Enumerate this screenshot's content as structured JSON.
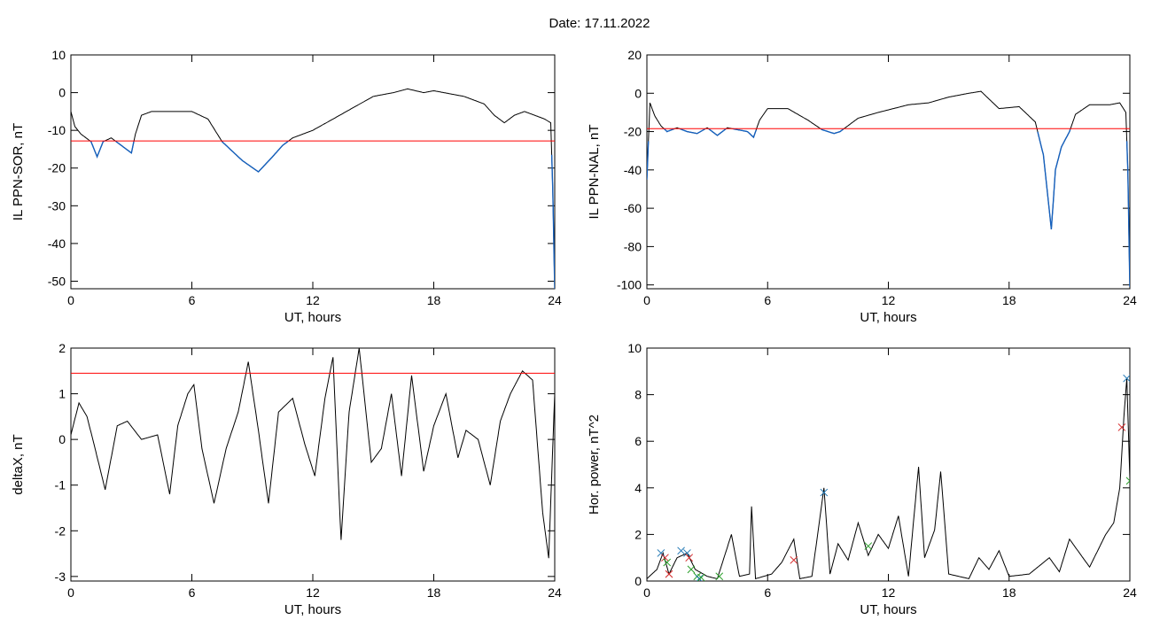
{
  "page": {
    "title": "Date:  17.11.2022"
  },
  "colors": {
    "trace": "#000000",
    "below_threshold": "#1560bd",
    "threshold": "#ff0000",
    "marker_blue": "#1f77b4",
    "marker_red": "#d62728",
    "marker_green": "#2ca02c"
  },
  "chart_data": [
    {
      "id": "sor",
      "type": "line",
      "xlabel": "UT, hours",
      "ylabel": "IL PPN-SOR, nT",
      "xlim": [
        0,
        24
      ],
      "ylim": [
        -52,
        10
      ],
      "xticks": [
        0,
        6,
        12,
        18,
        24
      ],
      "yticks": [
        10,
        0,
        -10,
        -20,
        -30,
        -40,
        -50
      ],
      "threshold": -12.8,
      "series": [
        {
          "values": [
            [
              0,
              -5
            ],
            [
              0.2,
              -9
            ],
            [
              0.5,
              -11
            ],
            [
              1,
              -13
            ],
            [
              1.3,
              -17
            ],
            [
              1.6,
              -13
            ],
            [
              2,
              -12
            ],
            [
              2.5,
              -14
            ],
            [
              3,
              -16
            ],
            [
              3.2,
              -11
            ],
            [
              3.5,
              -6
            ],
            [
              4,
              -5
            ],
            [
              5,
              -5
            ],
            [
              6,
              -5
            ],
            [
              6.8,
              -7
            ],
            [
              7.5,
              -13
            ],
            [
              8.5,
              -18
            ],
            [
              9.3,
              -21
            ],
            [
              10,
              -17
            ],
            [
              10.5,
              -14
            ],
            [
              11,
              -12
            ],
            [
              12,
              -10
            ],
            [
              13,
              -7
            ],
            [
              14,
              -4
            ],
            [
              15,
              -1
            ],
            [
              16,
              0
            ],
            [
              16.7,
              1
            ],
            [
              17.5,
              0
            ],
            [
              18,
              0.5
            ],
            [
              19,
              -0.5
            ],
            [
              19.5,
              -1
            ],
            [
              20.5,
              -3
            ],
            [
              21,
              -6
            ],
            [
              21.5,
              -8
            ],
            [
              22,
              -6
            ],
            [
              22.5,
              -5
            ],
            [
              23,
              -6
            ],
            [
              23.5,
              -7
            ],
            [
              23.8,
              -8
            ],
            [
              23.9,
              -25
            ],
            [
              24,
              -52
            ]
          ]
        }
      ]
    },
    {
      "id": "nal",
      "type": "line",
      "xlabel": "UT, hours",
      "ylabel": "IL PPN-NAL, nT",
      "xlim": [
        0,
        24
      ],
      "ylim": [
        -102,
        20
      ],
      "xticks": [
        0,
        6,
        12,
        18,
        24
      ],
      "yticks": [
        20,
        0,
        -20,
        -40,
        -60,
        -80,
        -100
      ],
      "threshold": -18.5,
      "series": [
        {
          "values": [
            [
              0,
              -45
            ],
            [
              0.15,
              -5
            ],
            [
              0.4,
              -12
            ],
            [
              0.7,
              -17
            ],
            [
              1,
              -20
            ],
            [
              1.5,
              -18
            ],
            [
              2,
              -20
            ],
            [
              2.5,
              -21
            ],
            [
              3,
              -18
            ],
            [
              3.5,
              -22
            ],
            [
              4,
              -18
            ],
            [
              5,
              -20
            ],
            [
              5.3,
              -23
            ],
            [
              5.6,
              -14
            ],
            [
              6,
              -8
            ],
            [
              7,
              -8
            ],
            [
              8,
              -14
            ],
            [
              8.7,
              -19
            ],
            [
              9.3,
              -21
            ],
            [
              9.6,
              -20
            ],
            [
              10.5,
              -13
            ],
            [
              11.5,
              -10
            ],
            [
              13,
              -6
            ],
            [
              14,
              -5
            ],
            [
              15,
              -2
            ],
            [
              16,
              0
            ],
            [
              16.6,
              1
            ],
            [
              17,
              -3
            ],
            [
              17.5,
              -8
            ],
            [
              18.5,
              -7
            ],
            [
              19.3,
              -15
            ],
            [
              19.7,
              -32
            ],
            [
              20.1,
              -71
            ],
            [
              20.3,
              -40
            ],
            [
              20.6,
              -28
            ],
            [
              21,
              -20
            ],
            [
              21.3,
              -11
            ],
            [
              22,
              -6
            ],
            [
              23,
              -6
            ],
            [
              23.5,
              -5
            ],
            [
              23.8,
              -10
            ],
            [
              23.9,
              -40
            ],
            [
              24,
              -101
            ]
          ]
        }
      ]
    },
    {
      "id": "deltax",
      "type": "line",
      "xlabel": "UT, hours",
      "ylabel": "deltaX, nT",
      "xlim": [
        0,
        24
      ],
      "ylim": [
        -3.1,
        2
      ],
      "xticks": [
        0,
        6,
        12,
        18,
        24
      ],
      "yticks": [
        2,
        1,
        0,
        -1,
        -2,
        -3
      ],
      "threshold": 1.45,
      "series": [
        {
          "values": [
            [
              0,
              0.1
            ],
            [
              0.4,
              0.8
            ],
            [
              0.8,
              0.5
            ],
            [
              1.2,
              -0.2
            ],
            [
              1.7,
              -1.1
            ],
            [
              2.3,
              0.3
            ],
            [
              2.8,
              0.4
            ],
            [
              3.5,
              0.0
            ],
            [
              4.3,
              0.1
            ],
            [
              4.9,
              -1.2
            ],
            [
              5.3,
              0.3
            ],
            [
              5.8,
              1.0
            ],
            [
              6.1,
              1.2
            ],
            [
              6.5,
              -0.2
            ],
            [
              7.1,
              -1.4
            ],
            [
              7.7,
              -0.2
            ],
            [
              8.3,
              0.6
            ],
            [
              8.8,
              1.7
            ],
            [
              9.3,
              0.2
            ],
            [
              9.8,
              -1.4
            ],
            [
              10.3,
              0.6
            ],
            [
              11,
              0.9
            ],
            [
              11.6,
              -0.1
            ],
            [
              12.1,
              -0.8
            ],
            [
              12.6,
              0.9
            ],
            [
              13,
              1.8
            ],
            [
              13.4,
              -2.2
            ],
            [
              13.8,
              0.6
            ],
            [
              14.3,
              2.0
            ],
            [
              14.9,
              -0.5
            ],
            [
              15.4,
              -0.2
            ],
            [
              15.9,
              1.0
            ],
            [
              16.4,
              -0.8
            ],
            [
              16.9,
              1.4
            ],
            [
              17.5,
              -0.7
            ],
            [
              18,
              0.3
            ],
            [
              18.6,
              1.0
            ],
            [
              19.2,
              -0.4
            ],
            [
              19.6,
              0.2
            ],
            [
              20.2,
              0.0
            ],
            [
              20.8,
              -1.0
            ],
            [
              21.3,
              0.4
            ],
            [
              21.8,
              1.0
            ],
            [
              22.4,
              1.5
            ],
            [
              22.9,
              1.3
            ],
            [
              23.4,
              -1.6
            ],
            [
              23.7,
              -2.6
            ],
            [
              24,
              1.0
            ]
          ]
        }
      ]
    },
    {
      "id": "power",
      "type": "line",
      "xlabel": "UT, hours",
      "ylabel": "Hor. power, nT^2",
      "xlim": [
        0,
        24
      ],
      "ylim": [
        0,
        10
      ],
      "xticks": [
        0,
        6,
        12,
        18,
        24
      ],
      "yticks": [
        10,
        8,
        6,
        4,
        2,
        0
      ],
      "series": [
        {
          "values": [
            [
              0,
              0.1
            ],
            [
              0.5,
              0.5
            ],
            [
              0.8,
              1.2
            ],
            [
              1.1,
              0.3
            ],
            [
              1.5,
              1.0
            ],
            [
              2,
              1.2
            ],
            [
              2.4,
              0.5
            ],
            [
              3,
              0.2
            ],
            [
              3.5,
              0.1
            ],
            [
              4.2,
              2.0
            ],
            [
              4.6,
              0.2
            ],
            [
              5.1,
              0.3
            ],
            [
              5.2,
              3.2
            ],
            [
              5.4,
              0.1
            ],
            [
              6.2,
              0.3
            ],
            [
              6.7,
              0.8
            ],
            [
              7.3,
              1.8
            ],
            [
              7.6,
              0.1
            ],
            [
              8.2,
              0.2
            ],
            [
              8.8,
              4.0
            ],
            [
              9.1,
              0.3
            ],
            [
              9.5,
              1.6
            ],
            [
              10,
              0.9
            ],
            [
              10.5,
              2.5
            ],
            [
              11,
              1.1
            ],
            [
              11.5,
              2.0
            ],
            [
              12,
              1.4
            ],
            [
              12.5,
              2.8
            ],
            [
              13,
              0.2
            ],
            [
              13.5,
              4.9
            ],
            [
              13.8,
              1.0
            ],
            [
              14.3,
              2.2
            ],
            [
              14.6,
              4.7
            ],
            [
              15,
              0.3
            ],
            [
              16,
              0.1
            ],
            [
              16.5,
              1.0
            ],
            [
              17,
              0.5
            ],
            [
              17.5,
              1.3
            ],
            [
              18,
              0.2
            ],
            [
              19,
              0.3
            ],
            [
              20,
              1.0
            ],
            [
              20.5,
              0.4
            ],
            [
              21,
              1.8
            ],
            [
              22,
              0.6
            ],
            [
              22.8,
              2.0
            ],
            [
              23.2,
              2.5
            ],
            [
              23.5,
              4.0
            ],
            [
              23.7,
              7.0
            ],
            [
              23.85,
              8.7
            ],
            [
              24,
              4.4
            ]
          ]
        }
      ],
      "markers": [
        {
          "x": 0.7,
          "y": 1.2,
          "color": "blue"
        },
        {
          "x": 0.9,
          "y": 1.0,
          "color": "red"
        },
        {
          "x": 1.0,
          "y": 0.8,
          "color": "green"
        },
        {
          "x": 1.1,
          "y": 0.3,
          "color": "red"
        },
        {
          "x": 1.7,
          "y": 1.3,
          "color": "blue"
        },
        {
          "x": 2.0,
          "y": 1.2,
          "color": "blue"
        },
        {
          "x": 2.1,
          "y": 1.0,
          "color": "red"
        },
        {
          "x": 2.2,
          "y": 0.5,
          "color": "green"
        },
        {
          "x": 2.5,
          "y": 0.2,
          "color": "green"
        },
        {
          "x": 2.6,
          "y": 0.1,
          "color": "blue"
        },
        {
          "x": 2.7,
          "y": 0.15,
          "color": "green"
        },
        {
          "x": 3.6,
          "y": 0.2,
          "color": "green"
        },
        {
          "x": 7.3,
          "y": 0.9,
          "color": "red"
        },
        {
          "x": 8.8,
          "y": 3.8,
          "color": "blue"
        },
        {
          "x": 11.0,
          "y": 1.5,
          "color": "green"
        },
        {
          "x": 23.6,
          "y": 6.6,
          "color": "red"
        },
        {
          "x": 23.85,
          "y": 8.7,
          "color": "blue"
        },
        {
          "x": 24,
          "y": 4.3,
          "color": "green"
        }
      ]
    }
  ]
}
